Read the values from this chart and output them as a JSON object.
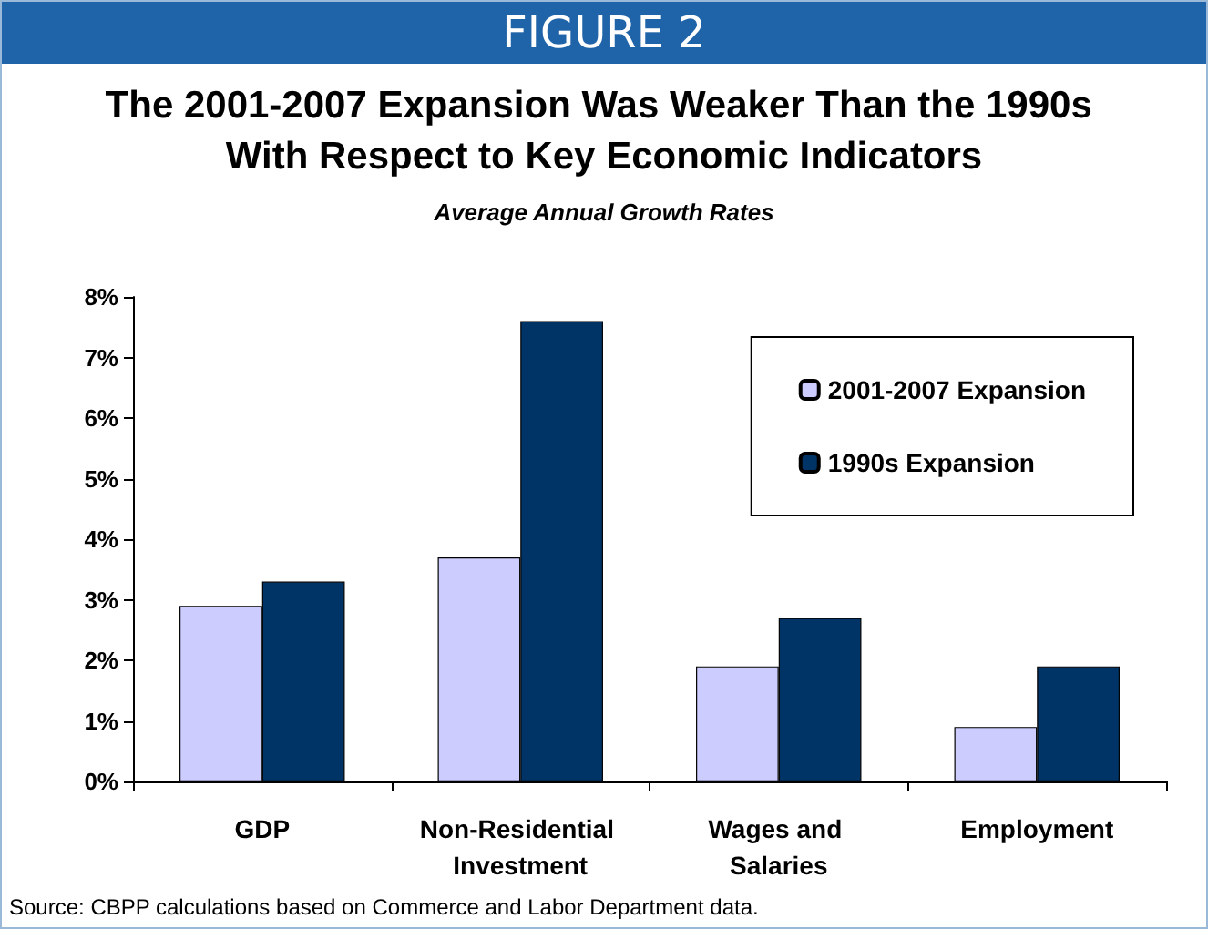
{
  "chart_data": {
    "type": "bar",
    "title": "The 2001-2007 Expansion Was Weaker Than the 1990s With Respect to Key Economic Indicators",
    "subtitle": "Average Annual Growth Rates",
    "annotations": [
      "FIGURE 2",
      "Source:  CBPP calculations based on Commerce and Labor Department data."
    ],
    "categories": [
      "GDP",
      "Non-Residential Investment",
      "Wages and Salaries",
      "Employment"
    ],
    "series": [
      {
        "name": "2001-2007 Expansion",
        "color": "#ccccff",
        "values": [
          2.9,
          3.7,
          1.9,
          0.9
        ]
      },
      {
        "name": "1990s Expansion",
        "color": "#003366",
        "values": [
          3.3,
          7.6,
          2.7,
          1.9
        ]
      }
    ],
    "ylim": [
      0,
      8
    ],
    "yticks": [
      {
        "value": 0,
        "label": "0%"
      },
      {
        "value": 1,
        "label": "1%"
      },
      {
        "value": 2,
        "label": "2%"
      },
      {
        "value": 3,
        "label": "3%"
      },
      {
        "value": 4,
        "label": "4%"
      },
      {
        "value": 5,
        "label": "5%"
      },
      {
        "value": 6,
        "label": "6%"
      },
      {
        "value": 7,
        "label": "7%"
      },
      {
        "value": 8,
        "label": "8%"
      }
    ],
    "grid": false,
    "legend": "top right"
  }
}
